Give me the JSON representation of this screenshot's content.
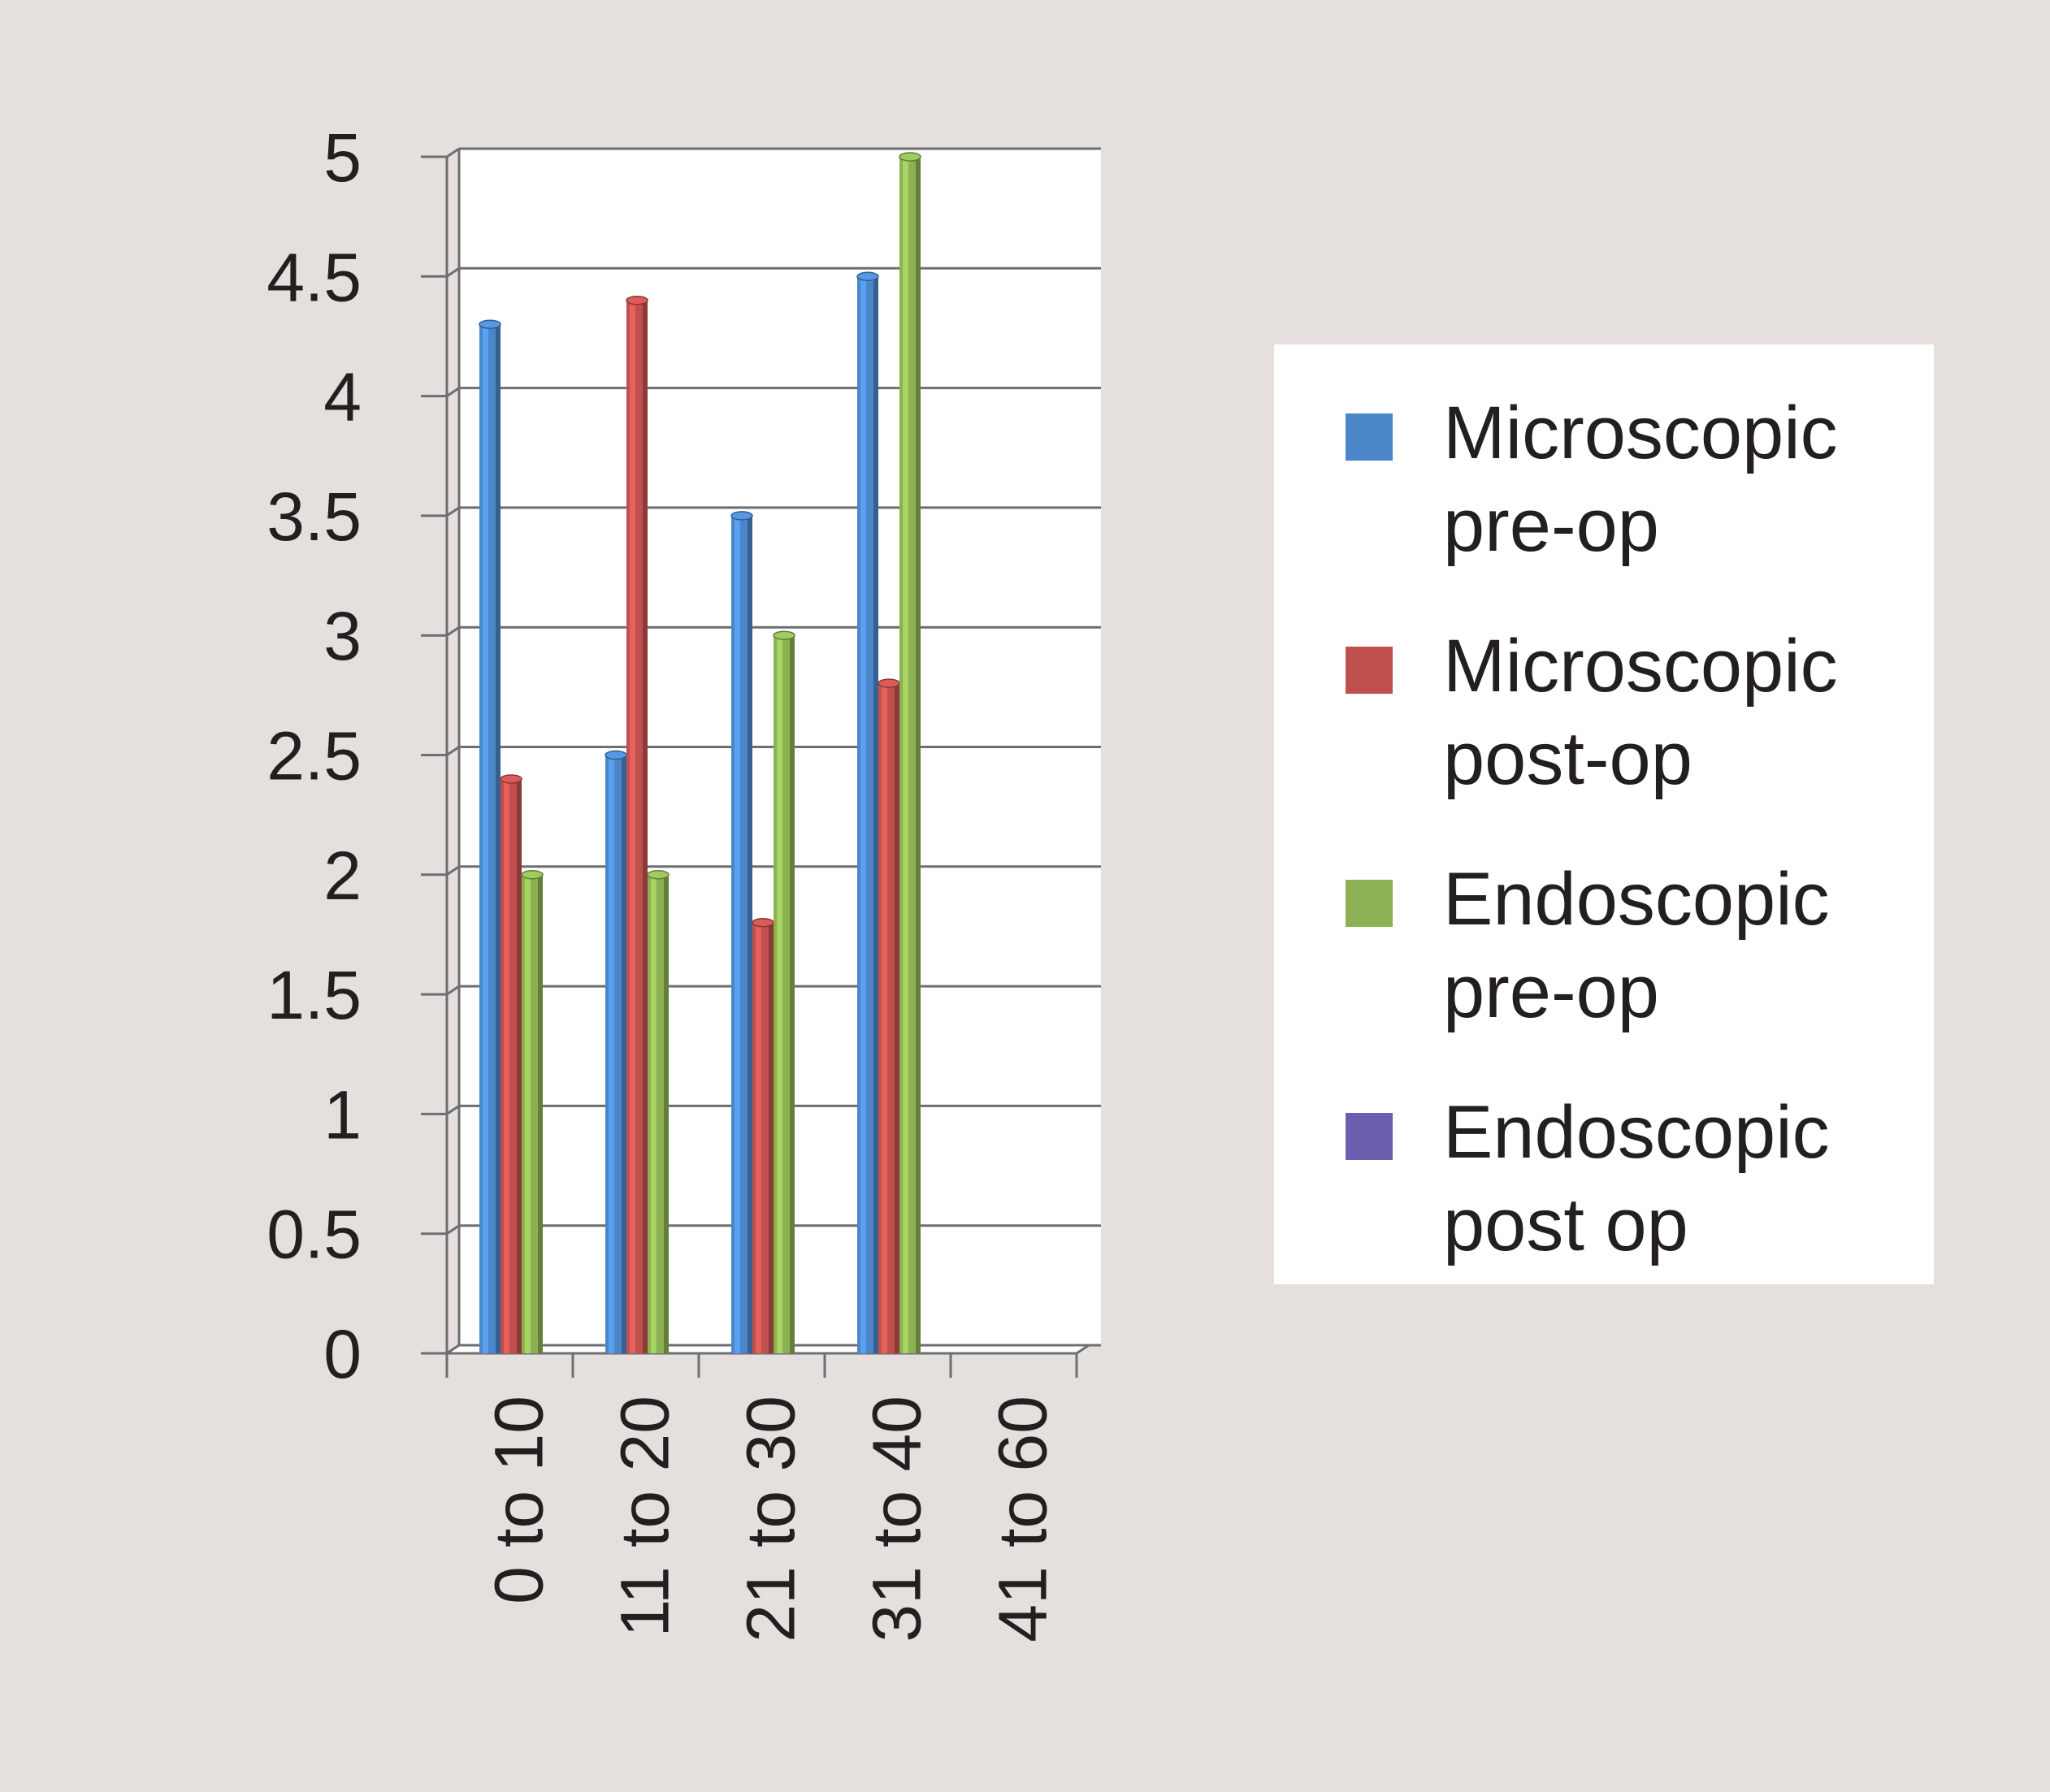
{
  "chart_data": {
    "type": "bar",
    "categories": [
      "0 to 10",
      "11 to 20",
      "21 to 30",
      "31 to 40",
      "41 to 60"
    ],
    "series": [
      {
        "name": "Microscopic pre-op",
        "values": [
          4.3,
          2.5,
          3.5,
          4.5,
          null
        ],
        "color": "#4a86c8"
      },
      {
        "name": "Microscopic post-op",
        "values": [
          2.4,
          4.4,
          1.8,
          2.8,
          null
        ],
        "color": "#c0504d"
      },
      {
        "name": "Endoscopic pre-op",
        "values": [
          2.0,
          2.0,
          3.0,
          5.0,
          null
        ],
        "color": "#8bb153"
      },
      {
        "name": "Endoscopic post op",
        "values": [
          null,
          null,
          null,
          null,
          null
        ],
        "color": "#6a5fae"
      }
    ],
    "yticks": [
      "0",
      "0.5",
      "1",
      "1.5",
      "2",
      "2.5",
      "3",
      "3.5",
      "4",
      "4.5",
      "5"
    ],
    "ylim": [
      0,
      5
    ],
    "title": "",
    "xlabel": "",
    "ylabel": "",
    "grid": true,
    "legend_position": "right"
  }
}
